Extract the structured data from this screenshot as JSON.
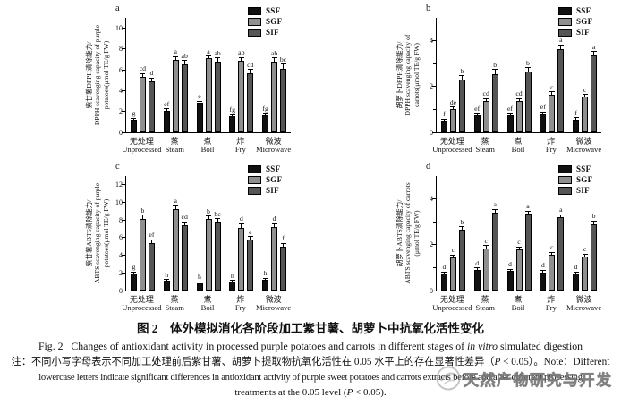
{
  "page": {
    "background": "#ffffff"
  },
  "legend": {
    "position": "top-right",
    "items": [
      {
        "label": "SSF",
        "color": "#111111"
      },
      {
        "label": "SGF",
        "color": "#8f8f8f"
      },
      {
        "label": "SIF",
        "color": "#555555"
      }
    ]
  },
  "chart_data": [
    {
      "type": "bar",
      "panel_label": "a",
      "ylabel_zh": "紫甘薯DPPH清除能力/",
      "ylabel_en": "DPPH scavenging capacity of purple potatoes(μmol TE/g FW)",
      "ymax": 11,
      "yticks": [
        0,
        2,
        4,
        6,
        8,
        10
      ],
      "yticks_minor": [],
      "grid": false,
      "categories_zh": [
        "无处理",
        "蒸",
        "煮",
        "炸",
        "微波"
      ],
      "categories_en": [
        "Unprocessed",
        "Steam",
        "Boil",
        "Fry",
        "Microwave"
      ],
      "series": [
        {
          "name": "SSF",
          "color": "#111111",
          "values": [
            1.2,
            2.05,
            2.8,
            1.55,
            1.65
          ],
          "errors": [
            0.12,
            0.15,
            0.15,
            0.1,
            0.12
          ],
          "letters": [
            "g",
            "ef",
            "e",
            "fg",
            "fg"
          ]
        },
        {
          "name": "SGF",
          "color": "#8f8f8f",
          "values": [
            5.3,
            7.0,
            7.1,
            6.85,
            6.8
          ],
          "errors": [
            0.3,
            0.25,
            0.2,
            0.3,
            0.3
          ],
          "letters": [
            "cd",
            "a",
            "a",
            "ab",
            "ab"
          ]
        },
        {
          "name": "SIF",
          "color": "#555555",
          "values": [
            4.9,
            6.5,
            6.8,
            5.65,
            6.1
          ],
          "errors": [
            0.3,
            0.35,
            0.3,
            0.35,
            0.4
          ],
          "letters": [
            "d",
            "ab",
            "ab",
            "cd",
            "bc"
          ]
        }
      ]
    },
    {
      "type": "bar",
      "panel_label": "b",
      "ylabel_zh": "胡萝卜DPPH清除能力/",
      "ylabel_en": "DPPH scavenging capacity of carrots(μmol TE/g FW)",
      "ymax": 5,
      "yticks": [
        0,
        2,
        4
      ],
      "yticks_minor": [
        1,
        3
      ],
      "grid": false,
      "categories_zh": [
        "无处理",
        "蒸",
        "煮",
        "炸",
        "微波"
      ],
      "categories_en": [
        "Unprocessed",
        "Steam",
        "Boil",
        "Fry",
        "Microwave"
      ],
      "series": [
        {
          "name": "SSF",
          "color": "#111111",
          "values": [
            0.5,
            0.75,
            0.75,
            0.8,
            0.55
          ],
          "errors": [
            0.06,
            0.07,
            0.07,
            0.07,
            0.06
          ],
          "letters": [
            "f",
            "ef",
            "ef",
            "ef",
            "f"
          ]
        },
        {
          "name": "SGF",
          "color": "#8f8f8f",
          "values": [
            1.0,
            1.35,
            1.35,
            1.65,
            1.55
          ],
          "errors": [
            0.08,
            0.1,
            0.1,
            0.1,
            0.08
          ],
          "letters": [
            "de",
            "cd",
            "cd",
            "c",
            "c"
          ]
        },
        {
          "name": "SIF",
          "color": "#555555",
          "values": [
            2.3,
            2.55,
            2.65,
            3.65,
            3.35
          ],
          "errors": [
            0.15,
            0.18,
            0.15,
            0.15,
            0.15
          ],
          "letters": [
            "b",
            "b",
            "b",
            "a",
            "a"
          ]
        }
      ]
    },
    {
      "type": "bar",
      "panel_label": "c",
      "ylabel_zh": "紫甘薯ABTS清除能力/",
      "ylabel_en": "ABTS scavenging capacity of purple potatoes(μmol TE/g FW)",
      "ymax": 13,
      "yticks": [
        0,
        2,
        4,
        6,
        8,
        10,
        12
      ],
      "yticks_minor": [],
      "grid": false,
      "categories_zh": [
        "无处理",
        "蒸",
        "煮",
        "炸",
        "微波"
      ],
      "categories_en": [
        "Unprocessed",
        "Steam",
        "Boil",
        "Fry",
        "Microwave"
      ],
      "series": [
        {
          "name": "SSF",
          "color": "#111111",
          "values": [
            1.9,
            1.1,
            0.8,
            1.0,
            1.25
          ],
          "errors": [
            0.15,
            0.12,
            0.12,
            0.1,
            0.12
          ],
          "letters": [
            "g",
            "h",
            "h",
            "h",
            "h"
          ]
        },
        {
          "name": "SGF",
          "color": "#8f8f8f",
          "values": [
            8.15,
            9.25,
            8.1,
            7.15,
            7.2
          ],
          "errors": [
            0.35,
            0.35,
            0.3,
            0.4,
            0.35
          ],
          "letters": [
            "b",
            "a",
            "b",
            "d",
            "d"
          ]
        },
        {
          "name": "SIF",
          "color": "#555555",
          "values": [
            5.4,
            7.4,
            7.8,
            5.75,
            5.0
          ],
          "errors": [
            0.3,
            0.35,
            0.3,
            0.3,
            0.3
          ],
          "letters": [
            "ef",
            "cd",
            "bc",
            "e",
            "f"
          ]
        }
      ]
    },
    {
      "type": "bar",
      "panel_label": "d",
      "ylabel_zh": "胡萝卜ABTS清除能力/",
      "ylabel_en": "ABTS scavenging capacity of carrots (μmol TE/g FW)",
      "ymax": 5,
      "yticks": [
        0,
        2,
        4
      ],
      "yticks_minor": [
        1,
        3
      ],
      "grid": false,
      "categories_zh": [
        "无处理",
        "蒸",
        "煮",
        "炸",
        "微波"
      ],
      "categories_en": [
        "Unprocessed",
        "Steam",
        "Boil",
        "Fry",
        "Microwave"
      ],
      "series": [
        {
          "name": "SSF",
          "color": "#111111",
          "values": [
            0.75,
            0.9,
            0.85,
            0.8,
            0.75
          ],
          "errors": [
            0.05,
            0.06,
            0.06,
            0.06,
            0.05
          ],
          "letters": [
            "d",
            "d",
            "d",
            "d",
            "d"
          ]
        },
        {
          "name": "SGF",
          "color": "#8f8f8f",
          "values": [
            1.45,
            1.85,
            1.8,
            1.55,
            1.5
          ],
          "errors": [
            0.08,
            0.1,
            0.08,
            0.1,
            0.08
          ],
          "letters": [
            "c",
            "c",
            "c",
            "c",
            "c"
          ]
        },
        {
          "name": "SIF",
          "color": "#555555",
          "values": [
            2.65,
            3.4,
            3.35,
            3.2,
            2.9
          ],
          "errors": [
            0.12,
            0.12,
            0.1,
            0.1,
            0.12
          ],
          "letters": [
            "b",
            "a",
            "a",
            "a",
            "b"
          ]
        }
      ]
    }
  ],
  "caption": {
    "title_zh": "图 2　体外模拟消化各阶段加工紫甘薯、胡萝卜中抗氧化活性变化",
    "fig_en": {
      "part1": "Fig. 2   Changes of antioxidant activity in processed purple potatoes and carrots in different stages of ",
      "italic": "in vitro",
      "part2": " simulated digestion"
    },
    "note_line1": {
      "part1": "注：不同小写字母表示不同加工处理前后紫甘薯、胡萝卜提取物抗氧化活性在 0.05 水平上的存在显著性差异（",
      "p": "P",
      "part2": " < 0.05）。Note：Different"
    },
    "note_line2": "lowercase letters indicate significant differences in antioxidant activity of purple sweet potatoes and carrots extracts before and after different processing",
    "note_line3": {
      "part1": "treatments at the 0.05 level (",
      "p": "P",
      "part2": " < 0.05)."
    }
  },
  "watermark": {
    "text": "天然产物研究与开发"
  }
}
